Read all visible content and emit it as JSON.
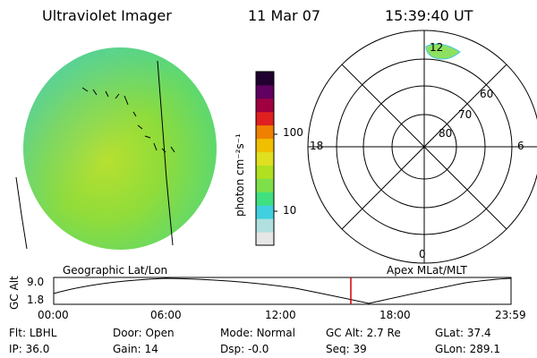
{
  "header": {
    "instrument": "Ultraviolet Imager",
    "date": "11 Mar 07",
    "time": "15:39:40 UT"
  },
  "colorbar": {
    "unit_label": "photon cm⁻²s⁻¹",
    "ticks": [
      "100",
      "10"
    ],
    "colors": [
      "#e6e6e6",
      "#b0e0e0",
      "#40d0e0",
      "#40e080",
      "#7de04a",
      "#b0e020",
      "#e0e020",
      "#f0c000",
      "#f08000",
      "#e02020",
      "#a00040",
      "#600060",
      "#200030"
    ]
  },
  "polar_grid": {
    "lat_labels": [
      "60",
      "70",
      "80"
    ],
    "mlt_labels": {
      "top": "12",
      "left": "18",
      "right": "6",
      "bottom": "0"
    }
  },
  "timeline": {
    "left_label": "Geographic Lat/Lon",
    "right_label": "Apex MLat/MLT",
    "y_axis_label": "GC Alt",
    "y_ticks": [
      "9.0",
      "1.8"
    ],
    "x_ticks": [
      "00:00",
      "06:00",
      "12:00",
      "18:00",
      "23:59"
    ],
    "current_time_color": "#d00000"
  },
  "status": {
    "filter": {
      "label": "Flt:",
      "value": "LBHL"
    },
    "ip": {
      "label": "IP:",
      "value": "36.0"
    },
    "door": {
      "label": "Door:",
      "value": "Open"
    },
    "gain": {
      "label": "Gain:",
      "value": "14"
    },
    "mode": {
      "label": "Mode:",
      "value": "Normal"
    },
    "dsp": {
      "label": "Dsp:",
      "value": "-0.0"
    },
    "gc_alt": {
      "label": "GC Alt:",
      "value": "2.7 Re"
    },
    "seq": {
      "label": "Seq:",
      "value": "39"
    },
    "glat": {
      "label": "GLat:",
      "value": "37.4"
    },
    "glon": {
      "label": "GLon:",
      "value": "289.1"
    }
  }
}
